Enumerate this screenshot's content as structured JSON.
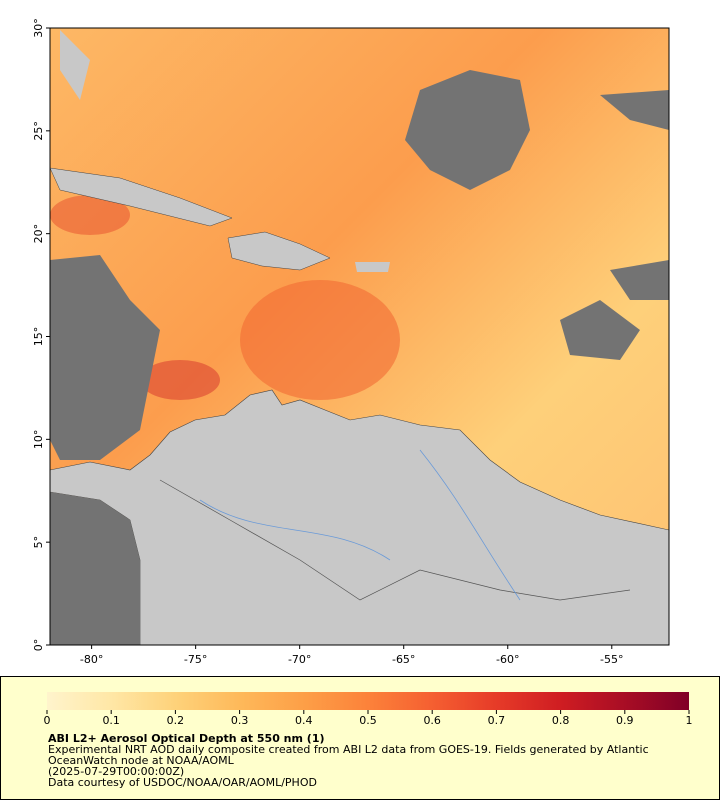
{
  "map": {
    "xlim": [
      -82,
      -52.25
    ],
    "ylim": [
      0,
      30
    ],
    "xticks": [
      {
        "value": -80,
        "label": "-80°"
      },
      {
        "value": -75,
        "label": "-75°"
      },
      {
        "value": -70,
        "label": "-70°"
      },
      {
        "value": -65,
        "label": "-65°"
      },
      {
        "value": -60,
        "label": "-60°"
      },
      {
        "value": -55,
        "label": "-55°"
      }
    ],
    "yticks": [
      {
        "value": 0,
        "label": "0°"
      },
      {
        "value": 5,
        "label": "5°"
      },
      {
        "value": 10,
        "label": "10°"
      },
      {
        "value": 15,
        "label": "15°"
      },
      {
        "value": 20,
        "label": "20°"
      },
      {
        "value": 25,
        "label": "25°"
      },
      {
        "value": 30,
        "label": "30°"
      }
    ]
  },
  "colorbar": {
    "lim": [
      0,
      1
    ],
    "ticks": [
      0,
      0.1,
      0.2,
      0.3,
      0.4,
      0.5,
      0.6,
      0.7,
      0.8,
      0.9,
      1
    ],
    "colors": [
      "#fff4cc",
      "#ffe7a6",
      "#fed27a",
      "#feb95a",
      "#fd9f47",
      "#fc823a",
      "#f55f31",
      "#e63b28",
      "#cf1d22",
      "#a80d25",
      "#800026"
    ]
  },
  "caption": {
    "title": "ABI L2+ Aerosol Optical Depth at 550 nm (1)",
    "lines": [
      "Experimental NRT AOD daily composite created from ABI L2 data from GOES-19. Fields generated by Atlantic",
      "OceanWatch node at NOAA/AOML",
      "(2025-07-29T00:00:00Z)",
      "Data courtesy of USDOC/NOAA/OAR/AOML/PHOD"
    ]
  }
}
